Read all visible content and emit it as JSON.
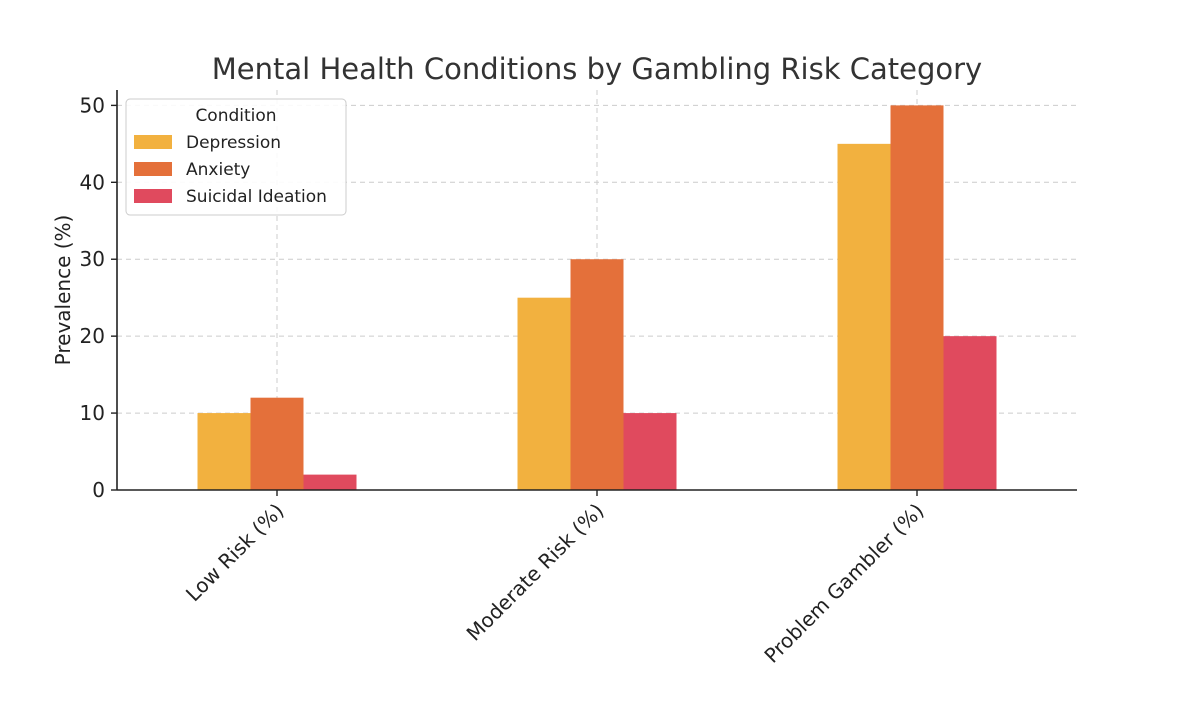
{
  "chart_data": {
    "type": "bar",
    "title": "Mental Health Conditions by Gambling Risk Category",
    "xlabel": "",
    "ylabel": "Prevalence (%)",
    "categories": [
      "Low Risk (%)",
      "Moderate Risk (%)",
      "Problem Gambler (%)"
    ],
    "series": [
      {
        "name": "Depression",
        "values": [
          10,
          25,
          45
        ],
        "color": "#F2B13F"
      },
      {
        "name": "Anxiety",
        "values": [
          12,
          30,
          50
        ],
        "color": "#E4703A"
      },
      {
        "name": "Suicidal Ideation",
        "values": [
          2,
          10,
          20
        ],
        "color": "#E04A5E"
      }
    ],
    "ylim": [
      0,
      52
    ],
    "yticks": [
      0,
      10,
      20,
      30,
      40,
      50
    ],
    "grid": true,
    "legend": {
      "title": "Condition",
      "placement": "top-left"
    }
  }
}
